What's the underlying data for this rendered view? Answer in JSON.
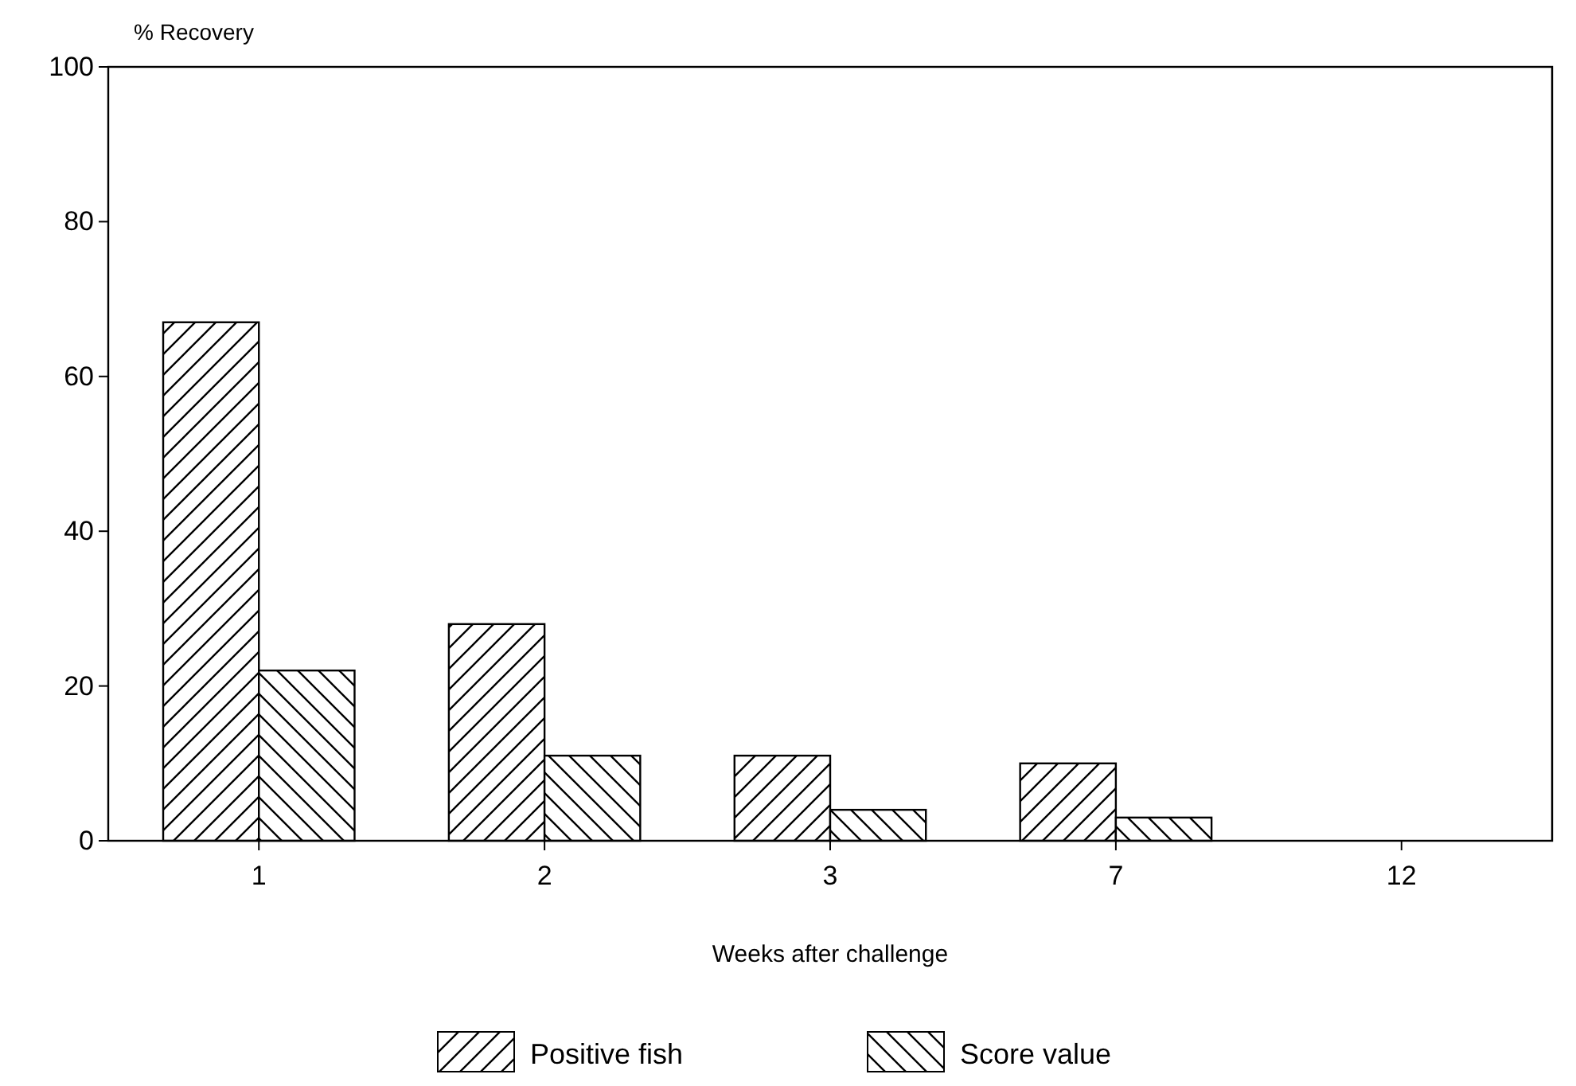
{
  "chart_data": {
    "type": "bar",
    "ylabel": "% Recovery",
    "xlabel": "Weeks after challenge",
    "categories": [
      "1",
      "2",
      "3",
      "7",
      "12"
    ],
    "series": [
      {
        "name": "Positive fish",
        "color": "#000000",
        "values": [
          67,
          28,
          11,
          10,
          0
        ]
      },
      {
        "name": "Score value",
        "color": "#000000",
        "values": [
          22,
          11,
          4,
          3,
          0
        ]
      }
    ],
    "ylim": [
      0,
      100
    ],
    "yticks": [
      0,
      20,
      40,
      60,
      80,
      100
    ],
    "grid": false,
    "legend": "bottom"
  }
}
